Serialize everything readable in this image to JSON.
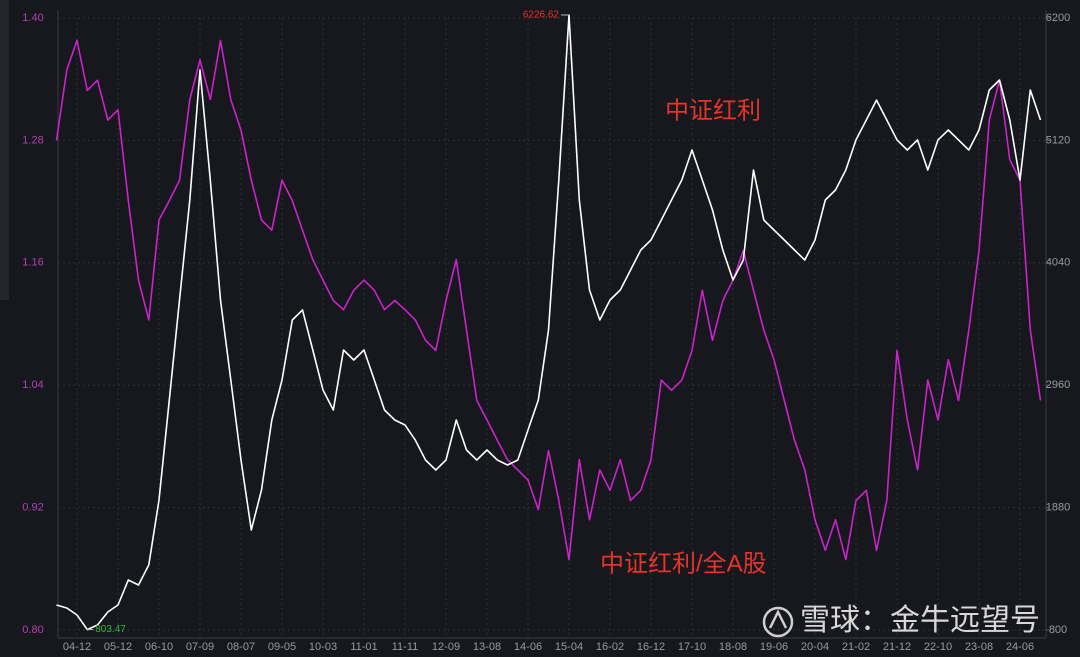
{
  "chart_data": {
    "type": "line",
    "categories": [
      null,
      null,
      "04-12",
      null,
      null,
      null,
      "05-12",
      null,
      null,
      null,
      "06-10",
      null,
      null,
      null,
      "07-09",
      null,
      null,
      null,
      "08-07",
      null,
      null,
      null,
      "09-05",
      null,
      null,
      null,
      "10-03",
      null,
      null,
      null,
      "11-01",
      null,
      null,
      null,
      "11-11",
      null,
      null,
      null,
      "12-09",
      null,
      null,
      null,
      "13-08",
      null,
      null,
      null,
      "14-06",
      null,
      null,
      null,
      "15-04",
      null,
      null,
      null,
      "16-02",
      null,
      null,
      null,
      "16-12",
      null,
      null,
      null,
      "17-10",
      null,
      null,
      null,
      "18-08",
      null,
      null,
      null,
      "19-06",
      null,
      null,
      null,
      "20-04",
      null,
      null,
      null,
      "21-02",
      null,
      null,
      null,
      "21-12",
      null,
      null,
      null,
      "22-10",
      null,
      null,
      null,
      "23-08",
      null,
      null,
      null,
      "24-06",
      null,
      null
    ],
    "series": [
      {
        "name": "中证红利",
        "color": "#ffffff",
        "axis": "y2",
        "values": [
          1021,
          994,
          932,
          803.47,
          844,
          959,
          1021,
          1241,
          1197,
          1374,
          1947,
          2829,
          3712,
          4594,
          5741,
          4771,
          3712,
          3006,
          2300,
          1682,
          2035,
          2653,
          3006,
          3535,
          3624,
          3271,
          2918,
          2741,
          3271,
          3182,
          3271,
          3006,
          2741,
          2653,
          2609,
          2476,
          2300,
          2212,
          2300,
          2653,
          2388,
          2300,
          2388,
          2300,
          2256,
          2300,
          2565,
          2829,
          3447,
          4771,
          6226.62,
          4594,
          3800,
          3535,
          3712,
          3800,
          3976,
          4153,
          4241,
          4418,
          4594,
          4771,
          5035,
          4771,
          4506,
          4153,
          3888,
          4065,
          4859,
          4418,
          4329,
          4241,
          4153,
          4065,
          4241,
          4594,
          4682,
          4859,
          5124,
          5300,
          5476,
          5300,
          5124,
          5035,
          5124,
          4859,
          5124,
          5212,
          5124,
          5035,
          5212,
          5565,
          5653,
          5300,
          4771,
          5565,
          5300
        ],
        "value_labels": [
          null,
          null,
          null,
          "803.47",
          null,
          null,
          null,
          null,
          null,
          null,
          null,
          null,
          null,
          null,
          null,
          null,
          null,
          null,
          null,
          null,
          null,
          null,
          null,
          null,
          null,
          null,
          null,
          null,
          null,
          null,
          null,
          null,
          null,
          null,
          null,
          null,
          null,
          null,
          null,
          null,
          null,
          null,
          null,
          null,
          null,
          null,
          null,
          null,
          null,
          null,
          "6226.62",
          null,
          null,
          null,
          null,
          null,
          null,
          null,
          null,
          null,
          null,
          null,
          null,
          null,
          null,
          null,
          null,
          null,
          null,
          null,
          null,
          null,
          null,
          null,
          null,
          null,
          null,
          null,
          null,
          null,
          null,
          null,
          null,
          null,
          null,
          null,
          null,
          null,
          null,
          null,
          null,
          null,
          null,
          null,
          null,
          null,
          null
        ]
      },
      {
        "name": "中证红利/全A股",
        "color": "#cc22cc",
        "axis": "y",
        "values": [
          1.28,
          1.349,
          1.378,
          1.329,
          1.339,
          1.3,
          1.31,
          1.221,
          1.143,
          1.104,
          1.202,
          1.221,
          1.241,
          1.32,
          1.359,
          1.32,
          1.378,
          1.32,
          1.29,
          1.241,
          1.202,
          1.192,
          1.241,
          1.221,
          1.192,
          1.163,
          1.143,
          1.123,
          1.114,
          1.133,
          1.143,
          1.133,
          1.114,
          1.123,
          1.114,
          1.104,
          1.084,
          1.074,
          1.123,
          1.163,
          1.094,
          1.025,
          1.006,
          0.986,
          0.967,
          0.957,
          0.947,
          0.918,
          0.976,
          0.927,
          0.869,
          0.967,
          0.908,
          0.957,
          0.937,
          0.967,
          0.927,
          0.937,
          0.967,
          1.045,
          1.035,
          1.045,
          1.074,
          1.133,
          1.084,
          1.123,
          1.143,
          1.172,
          1.133,
          1.094,
          1.065,
          1.025,
          0.986,
          0.957,
          0.908,
          0.878,
          0.908,
          0.869,
          0.927,
          0.937,
          0.878,
          0.927,
          1.074,
          1.006,
          0.957,
          1.045,
          1.006,
          1.065,
          1.025,
          1.094,
          1.172,
          1.3,
          1.339,
          1.261,
          1.241,
          1.094,
          1.025
        ]
      }
    ],
    "ylim": [
      0.8,
      1.4
    ],
    "yticks": [
      {
        "value": 0.8,
        "label": "0.80"
      },
      0.92,
      1.04,
      1.16,
      1.28,
      {
        "value": 1.4,
        "label": "1.40"
      }
    ],
    "y2lim": [
      800,
      6200
    ],
    "y2ticks": [
      800,
      1880,
      2960,
      4040,
      5120,
      6200
    ],
    "grid": true,
    "watermark": "雪球：金牛远望号"
  }
}
